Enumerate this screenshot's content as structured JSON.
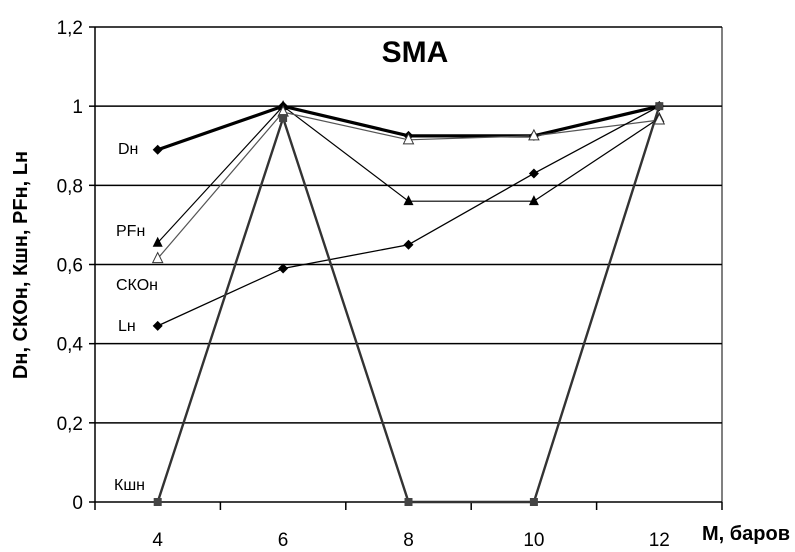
{
  "chart_data": {
    "type": "line",
    "title": "SMA",
    "xlabel": "M, баров",
    "ylabel": "Dн, СКОн, Кшн, PFн, Lн",
    "x": [
      4,
      6,
      8,
      10,
      12
    ],
    "xlim": [
      3,
      13
    ],
    "ylim": [
      0,
      1.2
    ],
    "yticks": [
      "0",
      "0,2",
      "0,4",
      "0,6",
      "0,8",
      "1",
      "1,2"
    ],
    "xticks": [
      "4",
      "6",
      "8",
      "10",
      "12"
    ],
    "grid": "horizontal",
    "series": [
      {
        "name": "Dн",
        "values": [
          0.89,
          1.0,
          0.925,
          0.925,
          1.0
        ],
        "color": "#000000",
        "marker": "diamond"
      },
      {
        "name": "PFн",
        "values": [
          0.655,
          1.0,
          0.76,
          0.76,
          0.97
        ],
        "color": "#000000",
        "marker": "triangle"
      },
      {
        "name": "СКОн",
        "values": [
          0.615,
          0.985,
          0.915,
          0.925,
          0.965
        ],
        "color": "#555555",
        "marker": "triangle-open"
      },
      {
        "name": "Lн",
        "values": [
          0.445,
          0.59,
          0.65,
          0.83,
          1.0
        ],
        "color": "#000000",
        "marker": "diamond"
      },
      {
        "name": "Кшн",
        "values": [
          0.0,
          0.97,
          0.0,
          0.0,
          1.0
        ],
        "color": "#333333",
        "marker": "square"
      }
    ]
  }
}
